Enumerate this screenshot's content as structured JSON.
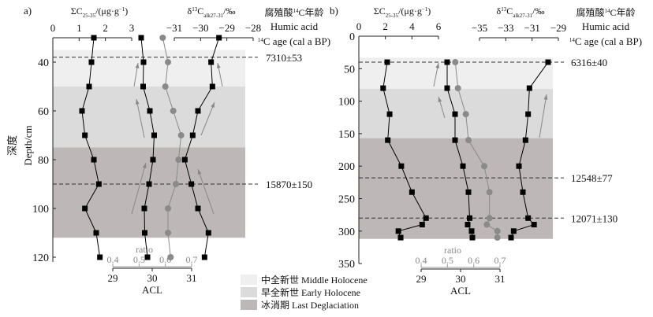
{
  "chart_data": [
    {
      "panel": "a)",
      "type": "line",
      "ylabel_cn": "深度",
      "ylabel": "Depth/cm",
      "ylim": [
        30,
        122
      ],
      "yticks": [
        "40",
        "60",
        "80",
        "100",
        "120"
      ],
      "depth": [
        30,
        40,
        50,
        60,
        70,
        80,
        90,
        100,
        110,
        120
      ],
      "sumC": {
        "title": [
          "ΣC",
          "25-35",
          "/(μg·g",
          "−1",
          ")"
        ],
        "range": [
          0,
          3
        ],
        "ticks": [
          "0",
          "1",
          "2",
          "3"
        ],
        "values": [
          1.56,
          1.47,
          1.38,
          1.11,
          1.22,
          1.56,
          1.75,
          1.22,
          1.65,
          1.79
        ]
      },
      "acl": {
        "label": "ACL",
        "range": [
          29,
          31
        ],
        "ticks": [
          "29",
          "30",
          "31"
        ],
        "values": [
          29.72,
          29.78,
          29.77,
          29.94,
          30.05,
          30.02,
          29.92,
          29.8,
          29.81,
          29.88
        ]
      },
      "ratio": {
        "label": "ratio",
        "range": [
          0.4,
          0.7
        ],
        "ticks": [
          "0.4",
          "0.5",
          "0.6",
          "0.7"
        ],
        "values": [
          0.59,
          0.61,
          0.6,
          0.63,
          0.66,
          0.65,
          0.64,
          0.61,
          0.61,
          0.62
        ]
      },
      "d13c": {
        "title": [
          "δ",
          "13",
          "C",
          "alk27-31",
          "/‰"
        ],
        "range": [
          -31,
          -28
        ],
        "ticks": [
          "−31",
          "−30",
          "−29",
          "−28"
        ],
        "values": [
          -29.3,
          -29.6,
          -29.55,
          -30.1,
          -30.3,
          -30.6,
          -30.35,
          -30.1,
          -29.7,
          -29.85
        ]
      },
      "age_header": {
        "cn": [
          "腐殖酸",
          "14",
          "C年龄"
        ],
        "en1": "Humic acid",
        "en2": [
          "14",
          "C age (cal a BP)"
        ]
      },
      "ages": [
        {
          "depth": 38,
          "label": "7310±53"
        },
        {
          "depth": 90,
          "label": "15870±150"
        }
      ],
      "zones": [
        {
          "zone": "mh",
          "from": 35,
          "to": 50
        },
        {
          "zone": "eh",
          "from": 50,
          "to": 75
        },
        {
          "zone": "ld",
          "from": 75,
          "to": 112
        }
      ]
    },
    {
      "panel": "b)",
      "type": "line",
      "ylim": [
        0,
        350
      ],
      "yticks": [
        "0",
        "50",
        "100",
        "150",
        "200",
        "250",
        "300",
        "350"
      ],
      "depth": [
        40,
        80,
        120,
        160,
        200,
        240,
        280,
        290,
        300,
        310
      ],
      "sumC": {
        "title": [
          "ΣC",
          "25-35",
          "/(μg·g",
          "−1",
          ")"
        ],
        "range": [
          0,
          6
        ],
        "ticks": [
          "0",
          "2",
          "4",
          "6"
        ],
        "values": [
          2.14,
          1.83,
          2.32,
          2.18,
          3.2,
          4.0,
          5.06,
          4.77,
          2.98,
          3.15
        ]
      },
      "acl": {
        "label": "ACL",
        "range": [
          29,
          31
        ],
        "ticks": [
          "29",
          "30",
          "31"
        ],
        "values": [
          29.66,
          29.66,
          29.86,
          29.86,
          30.06,
          30.2,
          30.23,
          30.18,
          30.28,
          30.3
        ]
      },
      "ratio": {
        "label": "ratio",
        "range": [
          0.4,
          0.7
        ],
        "ticks": [
          "0.4",
          "0.5",
          "0.6",
          "0.7"
        ],
        "values": [
          0.53,
          0.54,
          0.57,
          0.58,
          0.64,
          0.66,
          0.66,
          0.65,
          0.69,
          0.69
        ]
      },
      "d13c": {
        "title": [
          "δ",
          "13",
          "C",
          "alk27-31",
          "/‰"
        ],
        "range": [
          -35,
          -29
        ],
        "ticks": [
          "−35",
          "−33",
          "−31",
          "−29"
        ],
        "values": [
          -29.78,
          -31.2,
          -31.3,
          -31.5,
          -32.0,
          -31.7,
          -31.3,
          -30.85,
          -32.4,
          -32.6
        ]
      },
      "age_header": {
        "cn": [
          "腐殖酸",
          "14",
          "C年龄"
        ],
        "en1": "Humic acid",
        "en2": [
          "14",
          "C age (cal a BP)"
        ]
      },
      "ages": [
        {
          "depth": 40,
          "label": "6316±40"
        },
        {
          "depth": 218,
          "label": "12548±77"
        },
        {
          "depth": 280,
          "label": "12071±130"
        }
      ],
      "zones": [
        {
          "zone": "mh",
          "from": 33,
          "to": 81
        },
        {
          "zone": "eh",
          "from": 81,
          "to": 157
        },
        {
          "zone": "ld",
          "from": 157,
          "to": 312
        }
      ]
    }
  ],
  "legend": [
    {
      "zone": "mh",
      "label": "中全新世 Middle Holocene",
      "color": "#efefef"
    },
    {
      "zone": "eh",
      "label": "早全新世 Early Holocene",
      "color": "#dcdbdb"
    },
    {
      "zone": "ld",
      "label": "冰消期 Last Deglaciation",
      "color": "#bdb7b7"
    }
  ]
}
